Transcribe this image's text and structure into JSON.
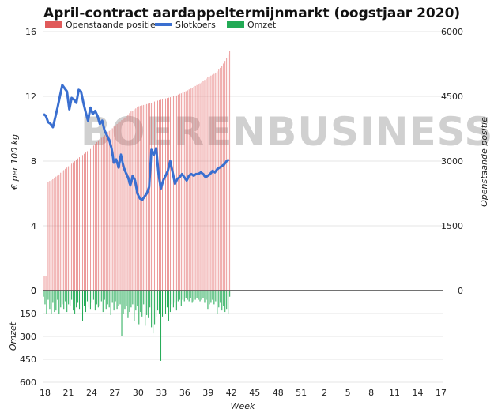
{
  "chart_data": {
    "type": "bar",
    "title": "April-contract aardappeltermijnmarkt (oogstjaar 2020)",
    "watermark": "BOERENBUSINESS",
    "xlabel": "Week",
    "x_ticks": [
      "18",
      "21",
      "24",
      "27",
      "30",
      "33",
      "36",
      "39",
      "42",
      "45",
      "48",
      "51",
      "2",
      "5",
      "8",
      "11",
      "14",
      "17"
    ],
    "x_range": [
      18,
      69
    ],
    "left_axis": {
      "label": "€ per 100 kg",
      "range": [
        0,
        16
      ],
      "ticks": [
        0,
        4,
        8,
        12,
        16
      ]
    },
    "right_axis": {
      "label": "Openstaande positie",
      "range": [
        0,
        6000
      ],
      "ticks": [
        0,
        1500,
        3000,
        4500,
        6000
      ]
    },
    "volume_axis": {
      "label": "Omzet",
      "range": [
        0,
        600
      ],
      "ticks": [
        0,
        150,
        300,
        450,
        600
      ]
    },
    "grid": true,
    "legend_position": "top",
    "series": [
      {
        "name": "Openstaande positie",
        "type": "bar",
        "axis": "right",
        "color": "#e05a5a",
        "x": [
          18.0,
          18.2,
          18.4,
          18.6,
          18.8,
          19.0,
          19.2,
          19.4,
          19.6,
          19.8,
          20.0,
          20.2,
          20.4,
          20.6,
          20.8,
          21.0,
          21.2,
          21.4,
          21.6,
          21.8,
          22.0,
          22.2,
          22.4,
          22.6,
          22.8,
          23.0,
          23.2,
          23.4,
          23.6,
          23.8,
          24.0,
          24.2,
          24.4,
          24.6,
          24.8,
          25.0,
          25.2,
          25.4,
          25.6,
          25.8,
          26.0,
          26.2,
          26.4,
          26.6,
          26.8,
          27.0,
          27.2,
          27.4,
          27.6,
          27.8,
          28.0,
          28.2,
          28.4,
          28.6,
          28.8,
          29.0,
          29.2,
          29.4,
          29.6,
          29.8,
          30.0,
          30.2,
          30.4,
          30.6,
          30.8,
          31.0,
          31.2,
          31.4,
          31.6,
          31.8,
          32.0,
          32.2,
          32.4,
          32.6,
          32.8,
          33.0,
          33.2,
          33.4,
          33.6,
          33.8,
          34.0,
          34.2,
          34.4,
          34.6,
          34.8,
          35.0,
          35.2,
          35.4,
          35.6,
          35.8,
          36.0,
          36.2,
          36.4,
          36.6,
          36.8,
          37.0,
          37.2,
          37.4,
          37.6,
          37.8,
          38.0,
          38.2,
          38.4,
          38.6,
          38.8,
          39.0,
          39.2,
          39.4,
          39.6,
          39.8,
          40.0,
          40.2,
          40.4,
          40.6,
          40.8,
          41.0,
          41.2,
          41.4,
          41.6,
          41.8
        ],
        "values": [
          340,
          340,
          340,
          2520,
          2540,
          2560,
          2580,
          2610,
          2640,
          2660,
          2690,
          2730,
          2760,
          2790,
          2820,
          2850,
          2880,
          2910,
          2940,
          2970,
          3000,
          3030,
          3060,
          3090,
          3110,
          3140,
          3170,
          3200,
          3230,
          3250,
          3280,
          3320,
          3360,
          3400,
          3440,
          3480,
          3510,
          3540,
          3570,
          3600,
          3640,
          3670,
          3700,
          3730,
          3760,
          3800,
          3830,
          3860,
          3890,
          3920,
          3950,
          3980,
          4010,
          4040,
          4080,
          4110,
          4150,
          4170,
          4200,
          4220,
          4260,
          4270,
          4280,
          4290,
          4300,
          4310,
          4320,
          4330,
          4340,
          4350,
          4370,
          4380,
          4390,
          4400,
          4410,
          4420,
          4430,
          4440,
          4450,
          4460,
          4470,
          4480,
          4490,
          4500,
          4510,
          4520,
          4540,
          4560,
          4570,
          4590,
          4610,
          4620,
          4640,
          4660,
          4680,
          4700,
          4720,
          4740,
          4760,
          4780,
          4800,
          4820,
          4850,
          4880,
          4910,
          4940,
          4960,
          4980,
          5000,
          5020,
          5050,
          5080,
          5120,
          5160,
          5200,
          5260,
          5320,
          5380,
          5460,
          5560
        ]
      },
      {
        "name": "Slotkoers",
        "type": "line",
        "axis": "left",
        "color": "#3a6fd0",
        "x": [
          18.0,
          18.3,
          18.6,
          18.9,
          19.2,
          19.5,
          19.8,
          20.1,
          20.4,
          20.7,
          21.0,
          21.3,
          21.6,
          21.9,
          22.2,
          22.5,
          22.8,
          23.1,
          23.4,
          23.7,
          24.0,
          24.3,
          24.6,
          24.9,
          25.2,
          25.5,
          25.8,
          26.1,
          26.4,
          26.7,
          27.0,
          27.3,
          27.6,
          27.9,
          28.2,
          28.5,
          28.8,
          29.1,
          29.4,
          29.7,
          30.0,
          30.3,
          30.6,
          30.9,
          31.2,
          31.5,
          31.8,
          32.1,
          32.4,
          32.7,
          33.0,
          33.3,
          33.6,
          33.9,
          34.2,
          34.5,
          34.8,
          35.1,
          35.4,
          35.7,
          36.0,
          36.3,
          36.6,
          36.9,
          37.2,
          37.5,
          37.8,
          38.1,
          38.4,
          38.7,
          39.0,
          39.3,
          39.6,
          39.9,
          40.2,
          40.5,
          40.8,
          41.1,
          41.4,
          41.7
        ],
        "values": [
          10.9,
          10.8,
          10.4,
          10.3,
          10.1,
          10.7,
          11.3,
          12.0,
          12.7,
          12.5,
          12.3,
          11.2,
          11.9,
          11.8,
          11.6,
          12.4,
          12.3,
          11.6,
          11.0,
          10.5,
          11.3,
          10.9,
          11.1,
          10.8,
          10.3,
          10.5,
          9.9,
          9.6,
          9.3,
          8.8,
          7.9,
          8.1,
          7.6,
          8.4,
          7.7,
          7.3,
          7.0,
          6.5,
          7.1,
          6.8,
          6.0,
          5.7,
          5.6,
          5.8,
          6.0,
          6.4,
          8.7,
          8.4,
          8.8,
          7.2,
          6.3,
          6.8,
          7.1,
          7.4,
          8.0,
          7.3,
          6.6,
          6.9,
          7.0,
          7.2,
          7.0,
          6.8,
          7.1,
          7.2,
          7.1,
          7.2,
          7.2,
          7.3,
          7.2,
          7.0,
          7.1,
          7.2,
          7.4,
          7.3,
          7.5,
          7.6,
          7.7,
          7.8,
          8.0,
          8.1
        ]
      },
      {
        "name": "Omzet",
        "type": "bar",
        "axis": "volume",
        "color": "#22aa55",
        "x": [
          18.0,
          18.2,
          18.4,
          18.6,
          18.8,
          19.0,
          19.2,
          19.4,
          19.6,
          19.8,
          20.0,
          20.2,
          20.4,
          20.6,
          20.8,
          21.0,
          21.2,
          21.4,
          21.6,
          21.8,
          22.0,
          22.2,
          22.4,
          22.6,
          22.8,
          23.0,
          23.2,
          23.4,
          23.6,
          23.8,
          24.0,
          24.2,
          24.4,
          24.6,
          24.8,
          25.0,
          25.2,
          25.4,
          25.6,
          25.8,
          26.0,
          26.2,
          26.4,
          26.6,
          26.8,
          27.0,
          27.2,
          27.4,
          27.6,
          27.8,
          28.0,
          28.2,
          28.4,
          28.6,
          28.8,
          29.0,
          29.2,
          29.4,
          29.6,
          29.8,
          30.0,
          30.2,
          30.4,
          30.6,
          30.8,
          31.0,
          31.2,
          31.4,
          31.6,
          31.8,
          32.0,
          32.2,
          32.4,
          32.6,
          32.8,
          33.0,
          33.2,
          33.4,
          33.6,
          33.8,
          34.0,
          34.2,
          34.4,
          34.6,
          34.8,
          35.0,
          35.2,
          35.4,
          35.6,
          35.8,
          36.0,
          36.2,
          36.4,
          36.6,
          36.8,
          37.0,
          37.2,
          37.4,
          37.6,
          37.8,
          38.0,
          38.2,
          38.4,
          38.6,
          38.8,
          39.0,
          39.2,
          39.4,
          39.6,
          39.8,
          40.0,
          40.2,
          40.4,
          40.6,
          40.8,
          41.0,
          41.2,
          41.4,
          41.6,
          41.8
        ],
        "values": [
          40,
          90,
          150,
          60,
          120,
          150,
          80,
          140,
          130,
          60,
          150,
          110,
          90,
          120,
          70,
          140,
          90,
          100,
          60,
          130,
          150,
          110,
          80,
          120,
          90,
          200,
          100,
          140,
          70,
          110,
          120,
          80,
          60,
          130,
          90,
          110,
          100,
          70,
          140,
          60,
          120,
          90,
          110,
          160,
          80,
          130,
          70,
          120,
          100,
          90,
          300,
          150,
          120,
          100,
          180,
          140,
          110,
          90,
          200,
          130,
          100,
          220,
          140,
          170,
          90,
          230,
          160,
          180,
          110,
          240,
          280,
          220,
          170,
          130,
          150,
          460,
          170,
          230,
          150,
          110,
          200,
          140,
          90,
          110,
          80,
          130,
          70,
          60,
          100,
          60,
          70,
          50,
          60,
          70,
          50,
          80,
          70,
          60,
          50,
          60,
          70,
          60,
          50,
          80,
          60,
          120,
          90,
          80,
          60,
          90,
          70,
          150,
          110,
          80,
          130,
          100,
          140,
          120,
          150,
          40
        ]
      }
    ]
  }
}
